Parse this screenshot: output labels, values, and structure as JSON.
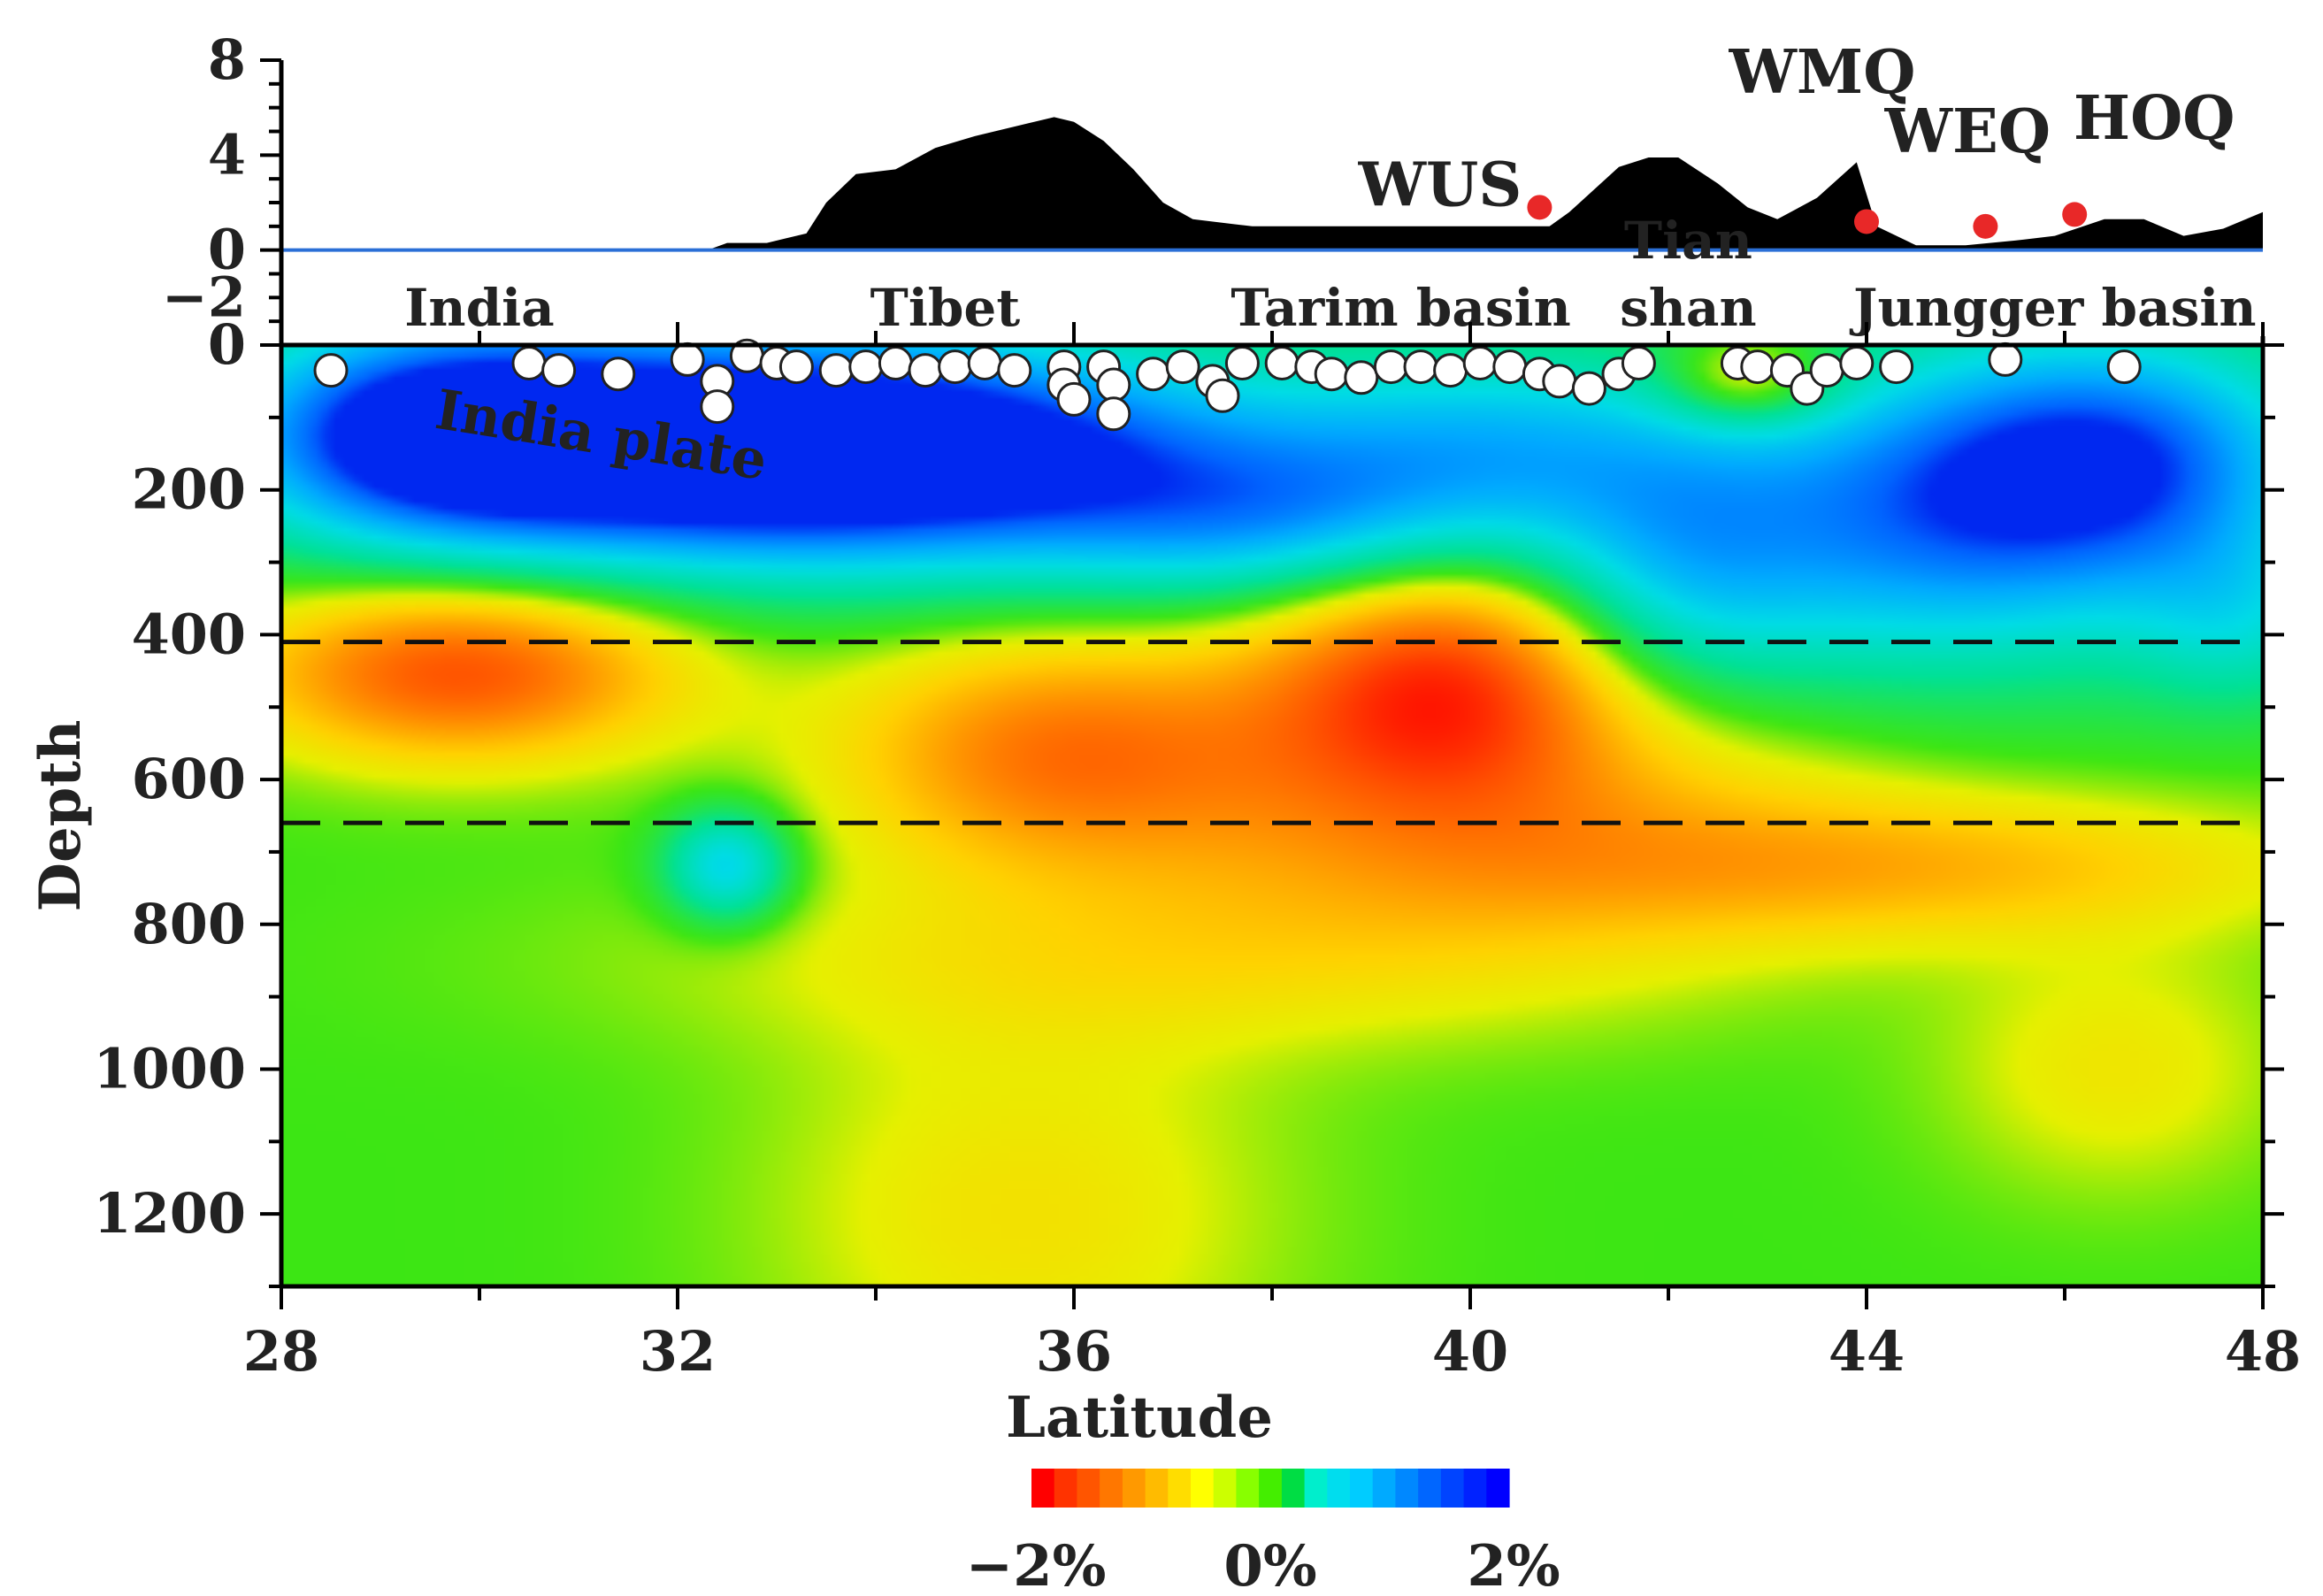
{
  "chart_data": {
    "type": "heatmap",
    "x_axis": {
      "label": "Latitude",
      "range": [
        28,
        48
      ],
      "ticks": [
        "28",
        "32",
        "36",
        "40",
        "44",
        "48"
      ]
    },
    "y_axis": {
      "label": "Depth",
      "range": [
        0,
        1300
      ],
      "ticks": [
        "0",
        "200",
        "400",
        "600",
        "800",
        "1000",
        "1200"
      ]
    },
    "topography": {
      "ticks": [
        "8",
        "4",
        "0",
        "−2"
      ],
      "range": [
        -4,
        8
      ],
      "profile": [
        [
          28.0,
          0.0
        ],
        [
          32.3,
          0.0
        ],
        [
          32.5,
          0.3
        ],
        [
          32.9,
          0.3
        ],
        [
          33.3,
          0.7
        ],
        [
          33.5,
          2.0
        ],
        [
          33.8,
          3.2
        ],
        [
          34.2,
          3.4
        ],
        [
          34.6,
          4.3
        ],
        [
          35.0,
          4.8
        ],
        [
          35.5,
          5.3
        ],
        [
          35.8,
          5.6
        ],
        [
          36.0,
          5.4
        ],
        [
          36.3,
          4.6
        ],
        [
          36.6,
          3.4
        ],
        [
          36.9,
          2.0
        ],
        [
          37.2,
          1.3
        ],
        [
          37.8,
          1.0
        ],
        [
          39.0,
          1.0
        ],
        [
          40.0,
          1.0
        ],
        [
          40.8,
          1.0
        ],
        [
          41.0,
          1.6
        ],
        [
          41.5,
          3.5
        ],
        [
          41.8,
          3.9
        ],
        [
          42.1,
          3.9
        ],
        [
          42.5,
          2.8
        ],
        [
          42.8,
          1.8
        ],
        [
          43.1,
          1.3
        ],
        [
          43.5,
          2.2
        ],
        [
          43.9,
          3.7
        ],
        [
          44.1,
          1.0
        ],
        [
          44.5,
          0.2
        ],
        [
          45.0,
          0.2
        ],
        [
          45.5,
          0.4
        ],
        [
          45.9,
          0.6
        ],
        [
          46.4,
          1.3
        ],
        [
          46.8,
          1.3
        ],
        [
          47.2,
          0.6
        ],
        [
          47.6,
          0.9
        ],
        [
          48.0,
          1.6
        ]
      ]
    },
    "stations": [
      {
        "name": "WUS",
        "lat": 40.7,
        "elev": 1.8
      },
      {
        "name": "WMQ",
        "lat": 44.0,
        "elev": 1.2
      },
      {
        "name": "WEQ",
        "lat": 45.2,
        "elev": 1.0
      },
      {
        "name": "HOQ",
        "lat": 46.1,
        "elev": 1.5
      }
    ],
    "regions": [
      {
        "name": "India",
        "lat": 30.0
      },
      {
        "name": "Tibet",
        "lat": 34.7
      },
      {
        "name": "Tarim basin",
        "lat": 39.3
      },
      {
        "name": "Tian",
        "lat": 42.2,
        "line": 1
      },
      {
        "name": "shan",
        "lat": 42.2
      },
      {
        "name": "Jungger basin",
        "lat": 45.9
      }
    ],
    "plate_label": {
      "text": "India plate",
      "lat": 31.2,
      "depth": 150
    },
    "discontinuities": [
      410,
      660
    ],
    "anomalies": [
      {
        "lat": 29.5,
        "depth": 120,
        "sx": 1.5,
        "sy": 110,
        "v": 1.8
      },
      {
        "lat": 32.3,
        "depth": 140,
        "sx": 2.3,
        "sy": 110,
        "v": 2.0
      },
      {
        "lat": 35.0,
        "depth": 150,
        "sx": 2.5,
        "sy": 110,
        "v": 1.6
      },
      {
        "lat": 38.0,
        "depth": 250,
        "sx": 1.6,
        "sy": 80,
        "v": 0.9
      },
      {
        "lat": 40.2,
        "depth": 140,
        "sx": 1.6,
        "sy": 100,
        "v": 1.0
      },
      {
        "lat": 42.0,
        "depth": 320,
        "sx": 1.0,
        "sy": 130,
        "v": 0.7
      },
      {
        "lat": 44.5,
        "depth": 250,
        "sx": 2.0,
        "sy": 150,
        "v": 1.4
      },
      {
        "lat": 46.5,
        "depth": 150,
        "sx": 1.5,
        "sy": 120,
        "v": 1.5
      },
      {
        "lat": 47.8,
        "depth": 380,
        "sx": 0.8,
        "sy": 90,
        "v": 0.6
      },
      {
        "lat": 32.5,
        "depth": 720,
        "sx": 0.45,
        "sy": 55,
        "v": 1.15
      },
      {
        "lat": 29.8,
        "depth": 450,
        "sx": 1.5,
        "sy": 85,
        "v": -1.5
      },
      {
        "lat": 35.8,
        "depth": 560,
        "sx": 1.5,
        "sy": 110,
        "v": -1.1
      },
      {
        "lat": 39.7,
        "depth": 460,
        "sx": 1.3,
        "sy": 120,
        "v": -1.5
      },
      {
        "lat": 40.0,
        "depth": 650,
        "sx": 2.7,
        "sy": 140,
        "v": -0.8
      },
      {
        "lat": 44.5,
        "depth": 720,
        "sx": 2.8,
        "sy": 70,
        "v": -0.7
      },
      {
        "lat": 42.8,
        "depth": 50,
        "sx": 0.6,
        "sy": 45,
        "v": -0.9
      },
      {
        "lat": 46.5,
        "depth": 1000,
        "sx": 1.2,
        "sy": 120,
        "v": -0.4
      },
      {
        "lat": 35.5,
        "depth": 1200,
        "sx": 1.8,
        "sy": 200,
        "v": -0.45
      },
      {
        "lat": 36.5,
        "depth": 850,
        "sx": 3.5,
        "sy": 90,
        "v": -0.35
      }
    ],
    "earthquakes": [
      [
        28.5,
        35
      ],
      [
        30.5,
        25
      ],
      [
        30.8,
        35
      ],
      [
        31.4,
        40
      ],
      [
        32.1,
        20
      ],
      [
        32.4,
        50
      ],
      [
        32.4,
        85
      ],
      [
        32.7,
        15
      ],
      [
        33.0,
        25
      ],
      [
        33.2,
        30
      ],
      [
        33.6,
        35
      ],
      [
        33.9,
        30
      ],
      [
        34.2,
        25
      ],
      [
        34.5,
        35
      ],
      [
        34.8,
        30
      ],
      [
        35.1,
        25
      ],
      [
        35.4,
        35
      ],
      [
        35.9,
        30
      ],
      [
        35.9,
        55
      ],
      [
        36.0,
        75
      ],
      [
        36.3,
        30
      ],
      [
        36.4,
        55
      ],
      [
        36.4,
        95
      ],
      [
        36.8,
        40
      ],
      [
        37.1,
        30
      ],
      [
        37.4,
        50
      ],
      [
        37.5,
        70
      ],
      [
        37.7,
        25
      ],
      [
        38.1,
        25
      ],
      [
        38.4,
        30
      ],
      [
        38.6,
        40
      ],
      [
        38.9,
        45
      ],
      [
        39.2,
        30
      ],
      [
        39.5,
        30
      ],
      [
        39.8,
        35
      ],
      [
        40.1,
        25
      ],
      [
        40.4,
        30
      ],
      [
        40.7,
        40
      ],
      [
        40.9,
        50
      ],
      [
        41.2,
        60
      ],
      [
        41.5,
        40
      ],
      [
        41.7,
        25
      ],
      [
        42.7,
        25
      ],
      [
        42.9,
        30
      ],
      [
        43.2,
        35
      ],
      [
        43.4,
        60
      ],
      [
        43.6,
        35
      ],
      [
        43.9,
        25
      ],
      [
        44.3,
        30
      ],
      [
        45.4,
        20
      ],
      [
        46.6,
        30
      ]
    ],
    "colorbar": {
      "colors": [
        "#ff0000",
        "#ff3300",
        "#ff5500",
        "#ff7700",
        "#ff9900",
        "#ffbb00",
        "#ffdd00",
        "#ffff00",
        "#ccff00",
        "#88ff00",
        "#44ee00",
        "#00dd44",
        "#00eecc",
        "#00ddee",
        "#00ccff",
        "#00aaff",
        "#0088ff",
        "#0066ff",
        "#0044ff",
        "#0022ff",
        "#0000ff"
      ],
      "labels": [
        "−2%",
        "0%",
        "2%"
      ],
      "range": [
        -2,
        2
      ]
    }
  }
}
